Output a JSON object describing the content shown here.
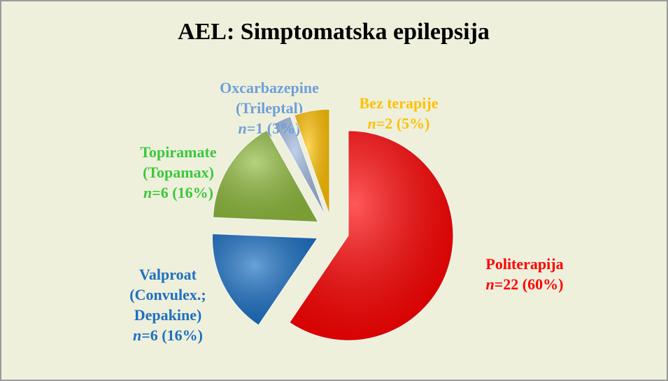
{
  "chart_data": {
    "type": "pie",
    "title": "AEL: Simptomatska epilepsija",
    "categories": [
      [
        "Politerapija"
      ],
      [
        "Valproat",
        "(Convulex.;",
        "Depakine)"
      ],
      [
        "Topiramate",
        "(Topamax)"
      ],
      [
        "Oxcarbazepine",
        "(Trileptal)"
      ],
      [
        "Bez terapije"
      ]
    ],
    "values": [
      22,
      6,
      6,
      1,
      2
    ],
    "value_labels": [
      "n=22 (60%)",
      "n=6 (16%)",
      "n=6 (16%)",
      "n=1 (3%)",
      "n=2 (5%)"
    ],
    "colors": [
      "#ff0000",
      "#1a6fc4",
      "#8fba3c",
      "#9db8de",
      "#ffc000"
    ],
    "label_colors": [
      "#ff0000",
      "#1f6fc0",
      "#3cc83c",
      "#6f9fd8",
      "#ffc000"
    ]
  }
}
